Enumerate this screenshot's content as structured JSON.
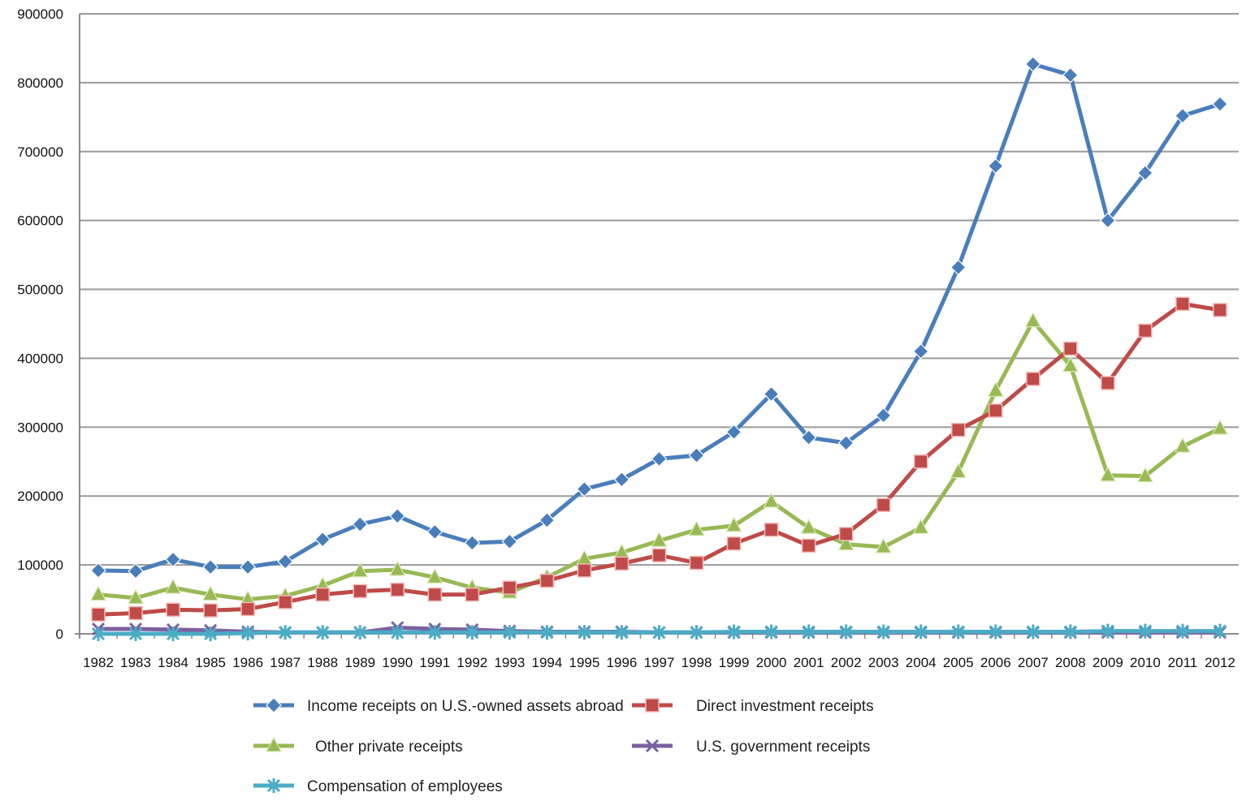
{
  "chart_data": {
    "type": "line",
    "title": "",
    "xlabel": "",
    "ylabel": "",
    "ylim": [
      0,
      900000
    ],
    "yticks": [
      "0",
      "100000",
      "200000",
      "300000",
      "400000",
      "500000",
      "600000",
      "700000",
      "800000",
      "900000"
    ],
    "grid": true,
    "legend_position": "bottom",
    "categories": [
      "1982",
      "1983",
      "1984",
      "1985",
      "1986",
      "1987",
      "1988",
      "1989",
      "1990",
      "1991",
      "1992",
      "1993",
      "1994",
      "1995",
      "1996",
      "1997",
      "1998",
      "1999",
      "2000",
      "2001",
      "2002",
      "2003",
      "2004",
      "2005",
      "2006",
      "2007",
      "2008",
      "2009",
      "2010",
      "2011",
      "2012"
    ],
    "series": [
      {
        "name": "Income receipts on U.S.-owned assets abroad",
        "color": "#4a7ebb",
        "marker": "diamond",
        "values": [
          92000,
          91000,
          108000,
          97000,
          97000,
          105000,
          137000,
          159000,
          171000,
          148000,
          132000,
          134000,
          165000,
          210000,
          224000,
          254000,
          259000,
          293000,
          348000,
          285000,
          277000,
          317000,
          410000,
          532000,
          679000,
          827000,
          811000,
          600000,
          669000,
          752000,
          769000
        ]
      },
      {
        "name": "Direct investment receipts",
        "color": "#be4b48",
        "marker": "square",
        "values": [
          28000,
          30000,
          35000,
          34000,
          36000,
          46000,
          57000,
          62000,
          64000,
          57000,
          57000,
          67000,
          77000,
          92000,
          102000,
          114000,
          103000,
          131000,
          151000,
          128000,
          145000,
          187000,
          250000,
          296000,
          324000,
          370000,
          414000,
          364000,
          440000,
          479000,
          470000
        ]
      },
      {
        "name": "Other private receipts",
        "color": "#98b954",
        "marker": "triangle",
        "values": [
          57000,
          52000,
          67000,
          57000,
          50000,
          55000,
          70000,
          91000,
          93000,
          82000,
          67000,
          60000,
          82000,
          109000,
          118000,
          135000,
          151000,
          157000,
          192000,
          154000,
          130000,
          126000,
          154000,
          235000,
          353000,
          454000,
          389000,
          230000,
          229000,
          272000,
          298000
        ]
      },
      {
        "name": "U.S. government receipts",
        "color": "#7d60a0",
        "marker": "x",
        "values": [
          7000,
          7000,
          6000,
          5000,
          3000,
          2000,
          2000,
          2000,
          9000,
          7000,
          6000,
          4000,
          3000,
          3000,
          3000,
          2000,
          2000,
          2000,
          2000,
          2000,
          2000,
          2000,
          2000,
          2000,
          2000,
          2000,
          2000,
          2000,
          2000,
          2000,
          2000
        ]
      },
      {
        "name": "Compensation of employees",
        "color": "#4bacc6",
        "marker": "star",
        "values": [
          0,
          0,
          0,
          0,
          1000,
          2000,
          2000,
          2000,
          2000,
          2000,
          2000,
          2000,
          2000,
          2000,
          2000,
          2000,
          2000,
          3000,
          3000,
          3000,
          3000,
          3000,
          3000,
          3000,
          3000,
          3000,
          3000,
          4000,
          4000,
          4000,
          4000
        ]
      }
    ]
  }
}
